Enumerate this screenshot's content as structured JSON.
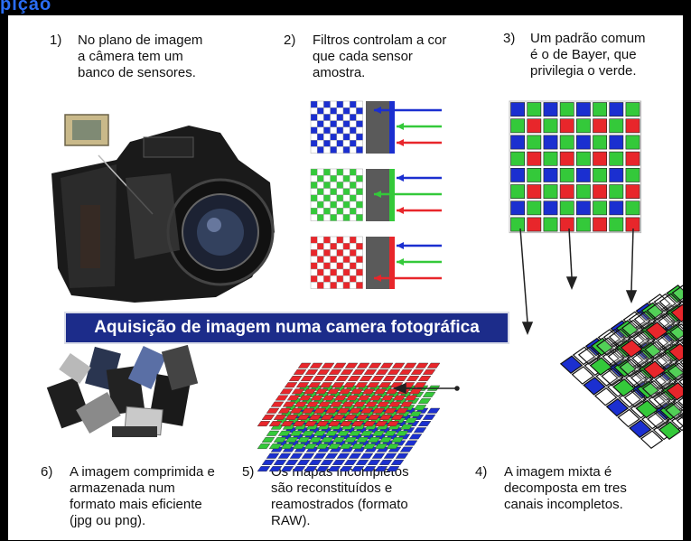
{
  "header_fragment": "pição",
  "banner": {
    "title": "Aquisição de imagem numa camera fotográfica"
  },
  "steps": [
    {
      "num": "1)",
      "text": "No plano de imagem\na câmera tem um\nbanco de sensores."
    },
    {
      "num": "2)",
      "text": "Filtros controlam a cor\nque cada sensor\namostra."
    },
    {
      "num": "3)",
      "text": "Um padrão comum\né o de Bayer, que\nprivilegia o verde."
    },
    {
      "num": "4)",
      "text": "A imagem mixta é\ndecomposta em tres\ncanais incompletos."
    },
    {
      "num": "5)",
      "text": "Os mapas incompletos\nsão reconstituídos e\nreamostrados (formato\nRAW)."
    },
    {
      "num": "6)",
      "text": "A imagem comprimida e\narmazenada num\nformato mais eficiente\n(jpg ou png)."
    }
  ],
  "colors": {
    "red": "#e8262b",
    "green": "#34c93a",
    "blue": "#1b2fd0",
    "banner": "#1c2c8a"
  },
  "icons": [
    "camera-illustration",
    "sensor-chip-icon",
    "memory-cards-illustration",
    "arrow-icon"
  ]
}
